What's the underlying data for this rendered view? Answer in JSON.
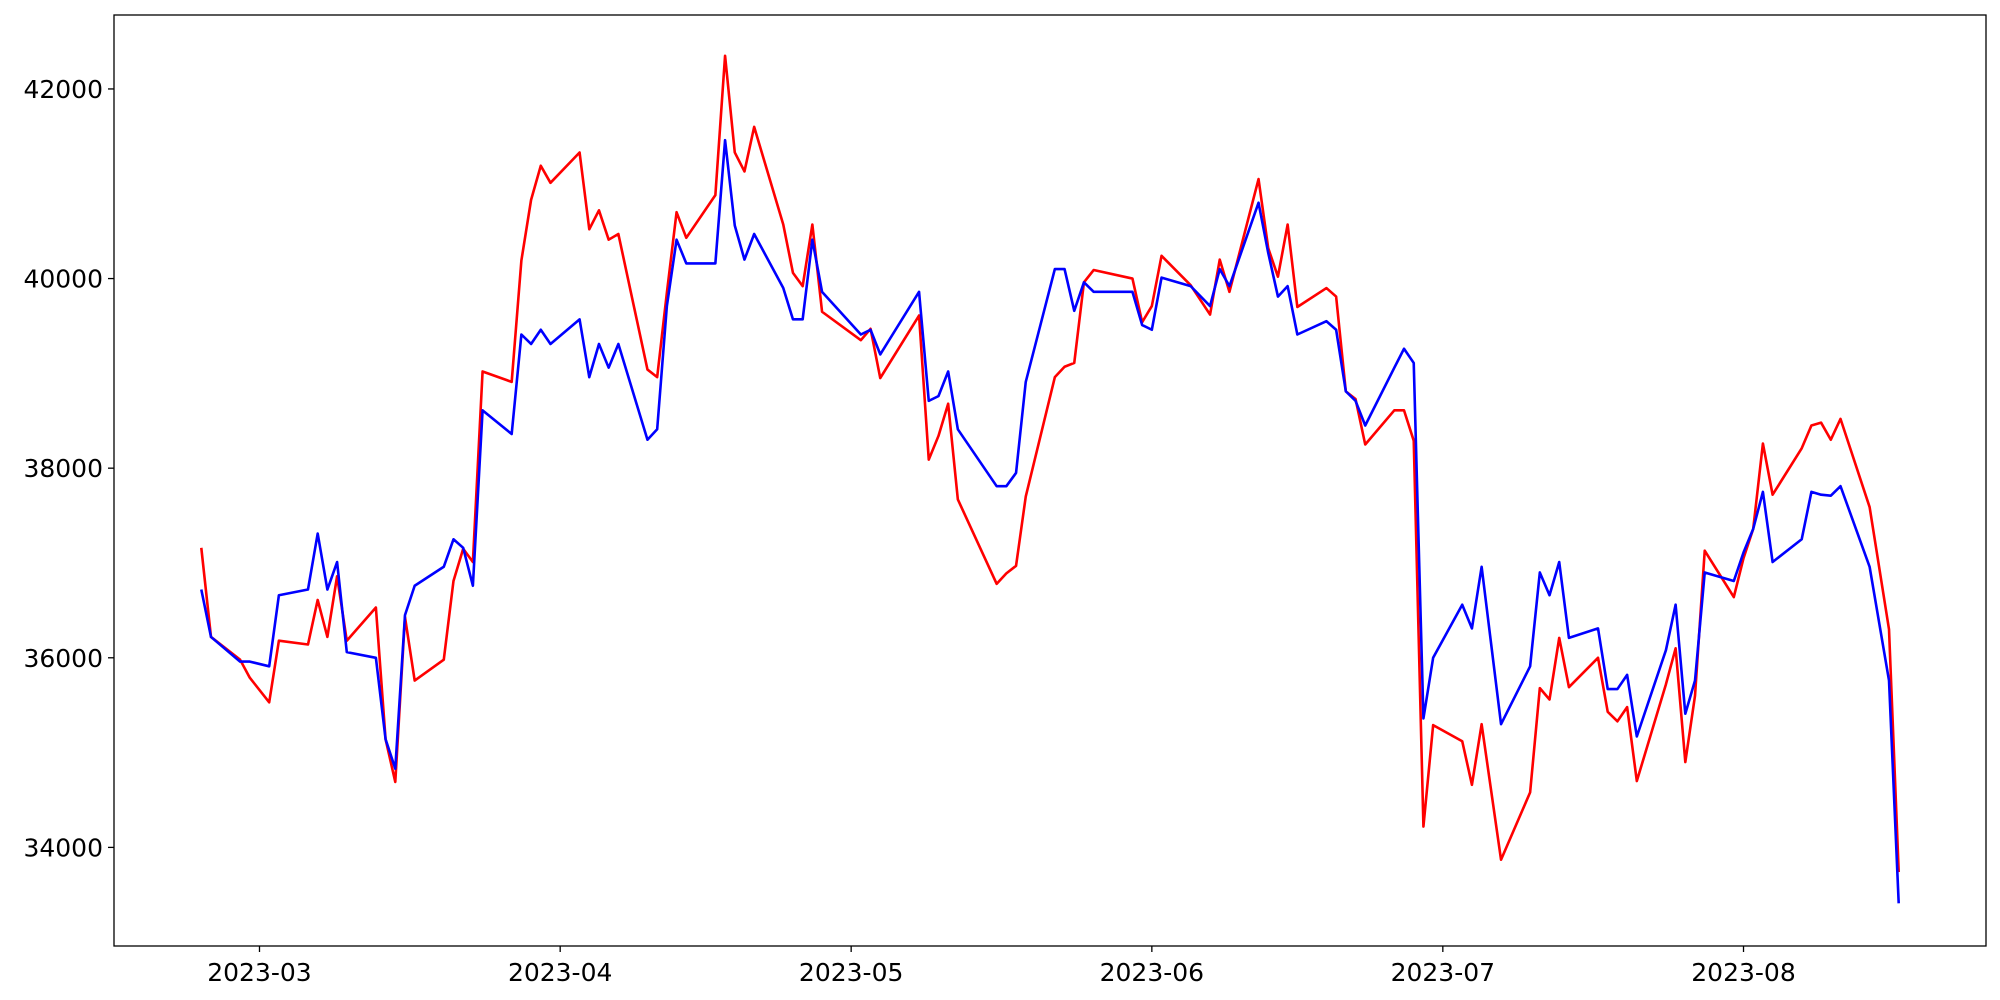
{
  "chart_data": {
    "type": "line",
    "x": [
      19411,
      19412,
      19415,
      19416,
      19418,
      19419,
      19422,
      19423,
      19424,
      19425,
      19426,
      19429,
      19430,
      19431,
      19432,
      19433,
      19436,
      19437,
      19438,
      19439,
      19440,
      19443,
      19444,
      19445,
      19446,
      19447,
      19450,
      19451,
      19452,
      19453,
      19454,
      19457,
      19458,
      19459,
      19460,
      19461,
      19464,
      19465,
      19466,
      19467,
      19468,
      19471,
      19472,
      19473,
      19474,
      19475,
      19479,
      19480,
      19481,
      19485,
      19486,
      19487,
      19488,
      19489,
      19493,
      19494,
      19495,
      19496,
      19499,
      19500,
      19501,
      19502,
      19503,
      19507,
      19508,
      19509,
      19510,
      19513,
      19515,
      19516,
      19517,
      19520,
      19521,
      19522,
      19523,
      19524,
      19527,
      19528,
      19529,
      19530,
      19531,
      19534,
      19535,
      19536,
      19537,
      19538,
      19541,
      19542,
      19543,
      19545,
      19548,
      19549,
      19550,
      19551,
      19552,
      19555,
      19556,
      19557,
      19558,
      19559,
      19562,
      19563,
      19564,
      19565,
      19566,
      19569,
      19570,
      19571,
      19572,
      19573,
      19576,
      19577,
      19578,
      19579,
      19580,
      19583,
      19585,
      19586
    ],
    "series": [
      {
        "color": "#ff0000",
        "values": [
          37160,
          36220,
          35980,
          35790,
          35530,
          36180,
          36140,
          36610,
          36220,
          36860,
          36180,
          36530,
          35140,
          34690,
          36430,
          35760,
          35980,
          36810,
          37150,
          37010,
          39020,
          38910,
          40190,
          40830,
          41190,
          41010,
          41330,
          40520,
          40720,
          40410,
          40470,
          39040,
          38960,
          39850,
          40700,
          40430,
          40880,
          42350,
          41330,
          41130,
          41600,
          40570,
          40060,
          39920,
          40570,
          39650,
          39350,
          39470,
          38950,
          39610,
          38090,
          38340,
          38680,
          37670,
          36780,
          36890,
          36970,
          37700,
          38960,
          39070,
          39110,
          39960,
          40090,
          40000,
          39540,
          39710,
          40240,
          39930,
          39620,
          40200,
          39860,
          41050,
          40320,
          40020,
          40570,
          39700,
          39900,
          39810,
          38810,
          38730,
          38250,
          38610,
          38610,
          38290,
          34220,
          35290,
          35120,
          34660,
          35300,
          33870,
          34580,
          35680,
          35560,
          36210,
          35690,
          36000,
          35430,
          35330,
          35480,
          34700,
          35720,
          36100,
          34900,
          35600,
          37130,
          36640,
          37050,
          37360,
          38260,
          37720,
          38210,
          38450,
          38480,
          38300,
          38520,
          37590,
          36300,
          33740
        ]
      },
      {
        "color": "#0000ff",
        "values": [
          36720,
          36220,
          35960,
          35960,
          35910,
          36660,
          36720,
          37310,
          36720,
          37010,
          36060,
          36000,
          35140,
          34830,
          36450,
          36760,
          36960,
          37250,
          37160,
          36760,
          38610,
          38360,
          39410,
          39310,
          39460,
          39310,
          39570,
          38960,
          39310,
          39060,
          39310,
          38300,
          38410,
          39710,
          40410,
          40160,
          40160,
          41460,
          40560,
          40200,
          40470,
          39900,
          39570,
          39570,
          40410,
          39860,
          39410,
          39460,
          39200,
          39860,
          38710,
          38760,
          39020,
          38410,
          37810,
          37810,
          37950,
          38910,
          40100,
          40100,
          39660,
          39960,
          39860,
          39860,
          39510,
          39460,
          40010,
          39920,
          39710,
          40100,
          39920,
          40800,
          40270,
          39810,
          39920,
          39410,
          39550,
          39460,
          38810,
          38710,
          38450,
          39060,
          39260,
          39110,
          35360,
          36000,
          36560,
          36310,
          36960,
          35300,
          35910,
          36900,
          36660,
          37010,
          36210,
          36310,
          35670,
          35670,
          35820,
          35170,
          36080,
          36560,
          35410,
          35760,
          36900,
          36810,
          37110,
          37360,
          37750,
          37010,
          37250,
          37750,
          37720,
          37710,
          37810,
          36960,
          35760,
          33410
        ]
      }
    ],
    "xlim": [
      19402,
      19595
    ],
    "xticks": [
      {
        "value": 19417,
        "label": "2023-03"
      },
      {
        "value": 19448,
        "label": "2023-04"
      },
      {
        "value": 19478,
        "label": "2023-05"
      },
      {
        "value": 19509,
        "label": "2023-06"
      },
      {
        "value": 19539,
        "label": "2023-07"
      },
      {
        "value": 19570,
        "label": "2023-08"
      }
    ],
    "ylim": [
      32960,
      42780
    ],
    "yticks": [
      34000,
      36000,
      38000,
      40000,
      42000
    ],
    "grid": false
  }
}
